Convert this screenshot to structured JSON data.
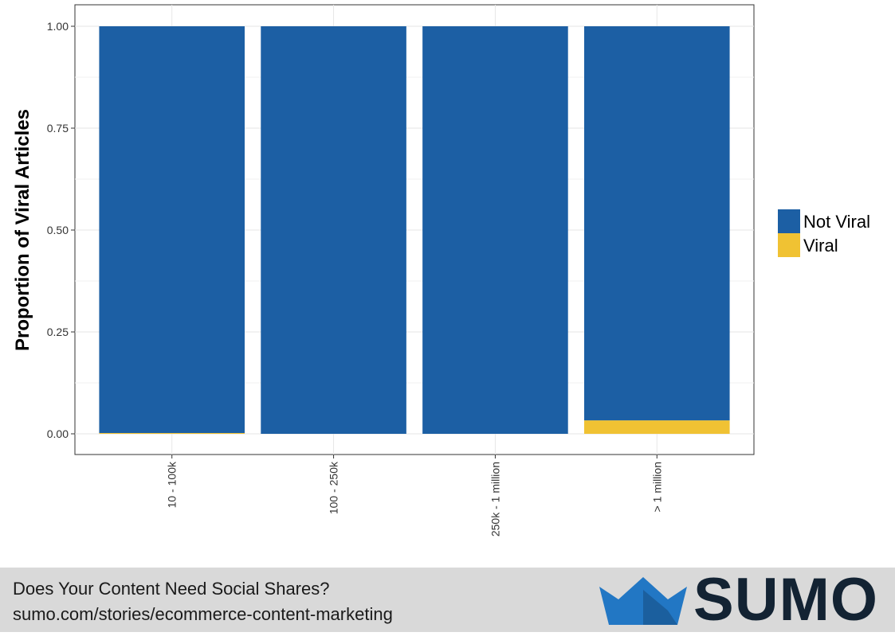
{
  "chart_data": {
    "type": "bar",
    "stacked": true,
    "categories": [
      "10 - 100k",
      "100 - 250k",
      "250k - 1 million",
      "> 1 million"
    ],
    "series": [
      {
        "name": "Viral",
        "values": [
          0.002,
          0.0,
          0.0,
          0.033
        ],
        "color": "#f0c233"
      },
      {
        "name": "Not Viral",
        "values": [
          0.998,
          1.0,
          1.0,
          0.967
        ],
        "color": "#1c5fa4"
      }
    ],
    "ylabel": "Proportion of Viral Articles",
    "xlabel": "",
    "ylim": [
      0,
      1
    ],
    "yticks": [
      "0.00",
      "0.25",
      "0.50",
      "0.75",
      "1.00"
    ],
    "ytick_values": [
      0,
      0.25,
      0.5,
      0.75,
      1.0
    ],
    "grid": true,
    "legend": {
      "position": "right",
      "entries": [
        "Not Viral",
        "Viral"
      ]
    }
  },
  "footer": {
    "line1": "Does Your Content Need Social Shares?",
    "line2": "sumo.com/stories/ecommerce-content-marketing"
  },
  "logo": {
    "text": "SUMO",
    "icon": "crown-icon",
    "text_color": "#132333",
    "icon_color": "#2277c4"
  }
}
